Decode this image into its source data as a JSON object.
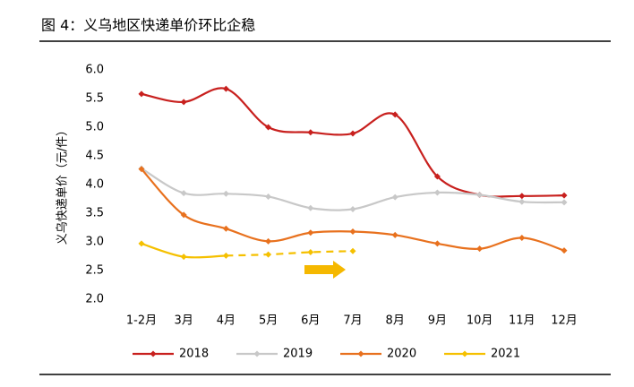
{
  "chart_data": {
    "type": "line",
    "title": "图 4：义乌地区快递单价环比企稳",
    "ylabel": "义乌快递单价（元/件）",
    "categories": [
      "1-2月",
      "3月",
      "4月",
      "5月",
      "6月",
      "7月",
      "8月",
      "9月",
      "10月",
      "11月",
      "12月"
    ],
    "series": [
      {
        "name": "2018",
        "color": "#c8201e",
        "values": [
          5.58,
          5.44,
          5.67,
          5.0,
          4.91,
          4.89,
          5.22,
          4.14,
          3.82,
          3.8,
          3.81
        ]
      },
      {
        "name": "2019",
        "color": "#c8c8c8",
        "values": [
          4.28,
          3.85,
          3.84,
          3.79,
          3.59,
          3.57,
          3.78,
          3.86,
          3.82,
          3.7,
          3.69
        ]
      },
      {
        "name": "2020",
        "color": "#e8711e",
        "values": [
          4.27,
          3.47,
          3.23,
          3.01,
          3.16,
          3.18,
          3.12,
          2.97,
          2.88,
          3.07,
          2.85
        ]
      },
      {
        "name": "2021",
        "color": "#f5c000",
        "values": [
          2.97,
          2.74,
          2.76,
          2.78,
          2.82,
          2.84,
          null,
          null,
          null,
          null,
          null
        ],
        "dash_start": 2
      }
    ],
    "ylim": [
      2,
      6
    ],
    "yticks": [
      {
        "value": 2,
        "label": "2.0"
      },
      2.5,
      {
        "value": 3,
        "label": "3.0"
      },
      3.5,
      {
        "value": 4,
        "label": "4.0"
      },
      4.5,
      {
        "value": 5,
        "label": "5.0"
      },
      5.5,
      {
        "value": 6,
        "label": "6.0"
      }
    ],
    "grid": false,
    "legend": "bottom"
  }
}
